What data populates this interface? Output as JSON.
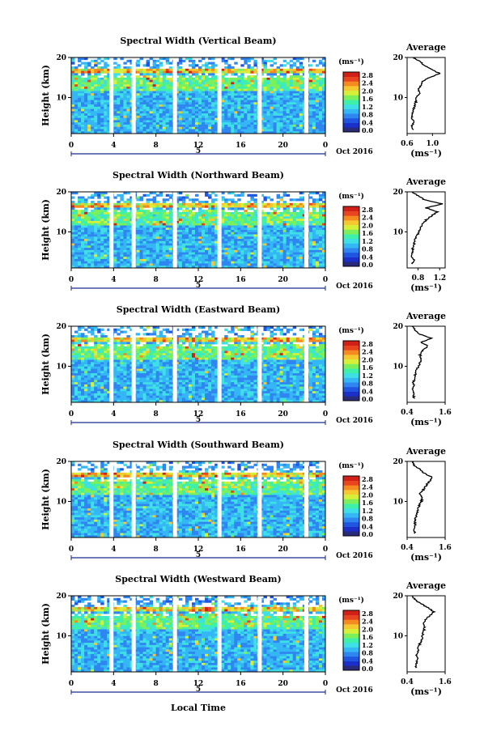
{
  "figure": {
    "xlabel": "Local Time",
    "date_label": "Oct 2016",
    "day_marker": "5",
    "colorbar_unit": "(ms⁻¹)",
    "profile_title": "Average",
    "profile_unit": "(ms⁻¹)",
    "ylabel": "Height (km)"
  },
  "colors": {
    "colormap": [
      "#2a2a7a",
      "#1a30c8",
      "#1f55e0",
      "#2f86f0",
      "#35b6f5",
      "#3ee0e6",
      "#3ef0a8",
      "#7cf05a",
      "#d6f03a",
      "#f5c830",
      "#f58a20",
      "#e84420",
      "#d02018"
    ],
    "axis": "#000000",
    "time_axis": "#1a2a8a"
  },
  "chart_data": [
    {
      "type": "heatmap",
      "title": "Spectral Width (Vertical Beam)",
      "x_ticks": [
        "0",
        "4",
        "8",
        "12",
        "16",
        "20",
        "0"
      ],
      "y_ticks": [
        "20",
        "10"
      ],
      "xlim": [
        0,
        24
      ],
      "ylim": [
        1,
        20
      ],
      "colorbar_ticks": [
        "2.8",
        "2.4",
        "2.0",
        "1.6",
        "1.2",
        "0.8",
        "0.4",
        "0.0"
      ],
      "gaps_hours": [
        3.8,
        5.9,
        9.8,
        14.0,
        17.8,
        22.2
      ],
      "profile": {
        "xlim": [
          0.6,
          1.2
        ],
        "x_ticks": [
          "0.6",
          "1.0"
        ],
        "heights": [
          2,
          3,
          4,
          5,
          6,
          7,
          8,
          9,
          10,
          11,
          12,
          13,
          14,
          15,
          16,
          17,
          18,
          19,
          20
        ],
        "values": [
          0.7,
          0.68,
          0.72,
          0.67,
          0.69,
          0.7,
          0.72,
          0.74,
          0.75,
          0.79,
          0.78,
          0.82,
          0.85,
          0.95,
          1.12,
          0.98,
          0.88,
          0.8,
          0.7
        ]
      }
    },
    {
      "type": "heatmap",
      "title": "Spectral Width (Northward Beam)",
      "x_ticks": [
        "0",
        "4",
        "8",
        "12",
        "16",
        "20",
        "0"
      ],
      "y_ticks": [
        "20",
        "10"
      ],
      "xlim": [
        0,
        24
      ],
      "ylim": [
        1,
        20
      ],
      "colorbar_ticks": [
        "2.8",
        "2.4",
        "2.0",
        "1.6",
        "1.2",
        "0.8",
        "0.4",
        "0.0"
      ],
      "gaps_hours": [
        3.8,
        5.9,
        9.8,
        14.0,
        17.8,
        22.2
      ],
      "profile": {
        "xlim": [
          0.6,
          1.3
        ],
        "x_ticks": [
          "0.8",
          "1.2"
        ],
        "heights": [
          2,
          3,
          4,
          5,
          6,
          7,
          8,
          9,
          10,
          11,
          12,
          13,
          14,
          15,
          16,
          17,
          18,
          19,
          20
        ],
        "values": [
          0.7,
          0.72,
          0.68,
          0.71,
          0.7,
          0.73,
          0.75,
          0.78,
          0.82,
          0.85,
          0.88,
          0.95,
          1.05,
          1.15,
          0.95,
          1.25,
          0.92,
          0.8,
          0.7
        ]
      }
    },
    {
      "type": "heatmap",
      "title": "Spectral Width (Eastward Beam)",
      "x_ticks": [
        "0",
        "4",
        "8",
        "12",
        "16",
        "20",
        "0"
      ],
      "y_ticks": [
        "20",
        "10"
      ],
      "xlim": [
        0,
        24
      ],
      "ylim": [
        1,
        20
      ],
      "colorbar_ticks": [
        "2.8",
        "2.4",
        "2.0",
        "1.6",
        "1.2",
        "0.8",
        "0.4",
        "0.0"
      ],
      "gaps_hours": [
        3.8,
        5.9,
        9.8,
        14.0,
        17.8,
        22.2
      ],
      "profile": {
        "xlim": [
          0.4,
          1.6
        ],
        "x_ticks": [
          "0.4",
          "1.6"
        ],
        "heights": [
          2,
          3,
          4,
          5,
          6,
          7,
          8,
          9,
          10,
          11,
          12,
          13,
          14,
          15,
          16,
          17,
          18,
          19,
          20
        ],
        "values": [
          0.62,
          0.6,
          0.58,
          0.62,
          0.6,
          0.64,
          0.66,
          0.7,
          0.75,
          0.82,
          0.85,
          0.8,
          0.9,
          1.05,
          0.85,
          1.15,
          0.8,
          0.65,
          0.55
        ]
      }
    },
    {
      "type": "heatmap",
      "title": "Spectral Width (Southward Beam)",
      "x_ticks": [
        "0",
        "4",
        "8",
        "12",
        "16",
        "20",
        "0"
      ],
      "y_ticks": [
        "20",
        "10"
      ],
      "xlim": [
        0,
        24
      ],
      "ylim": [
        1,
        20
      ],
      "colorbar_ticks": [
        "2.8",
        "2.4",
        "2.0",
        "1.6",
        "1.2",
        "0.8",
        "0.4",
        "0.0"
      ],
      "gaps_hours": [
        3.8,
        5.9,
        9.8,
        14.0,
        17.8,
        22.2
      ],
      "profile": {
        "xlim": [
          0.4,
          1.6
        ],
        "x_ticks": [
          "0.4",
          "1.6"
        ],
        "heights": [
          2,
          3,
          4,
          5,
          6,
          7,
          8,
          9,
          10,
          11,
          12,
          13,
          14,
          15,
          16,
          17,
          18,
          19,
          20
        ],
        "values": [
          0.65,
          0.62,
          0.66,
          0.64,
          0.68,
          0.7,
          0.75,
          0.78,
          0.85,
          0.88,
          0.8,
          0.92,
          1.0,
          1.1,
          1.2,
          0.95,
          0.8,
          0.62,
          0.55
        ]
      }
    },
    {
      "type": "heatmap",
      "title": "Spectral Width (Westward Beam)",
      "x_ticks": [
        "0",
        "4",
        "8",
        "12",
        "16",
        "20",
        "0"
      ],
      "y_ticks": [
        "20",
        "10"
      ],
      "xlim": [
        0,
        24
      ],
      "ylim": [
        1,
        20
      ],
      "colorbar_ticks": [
        "2.8",
        "2.4",
        "2.0",
        "1.6",
        "1.2",
        "0.8",
        "0.4",
        "0.0"
      ],
      "gaps_hours": [
        3.8,
        5.9,
        9.8,
        14.0,
        17.8,
        22.2
      ],
      "profile": {
        "xlim": [
          0.4,
          1.6
        ],
        "x_ticks": [
          "0.4",
          "1.6"
        ],
        "heights": [
          2,
          3,
          4,
          5,
          6,
          7,
          8,
          9,
          10,
          11,
          12,
          13,
          14,
          15,
          16,
          17,
          18,
          19,
          20
        ],
        "values": [
          0.68,
          0.7,
          0.72,
          0.7,
          0.74,
          0.76,
          0.8,
          0.85,
          0.88,
          0.92,
          0.95,
          0.9,
          0.98,
          1.1,
          1.25,
          1.05,
          0.85,
          0.65,
          0.55
        ]
      }
    }
  ]
}
